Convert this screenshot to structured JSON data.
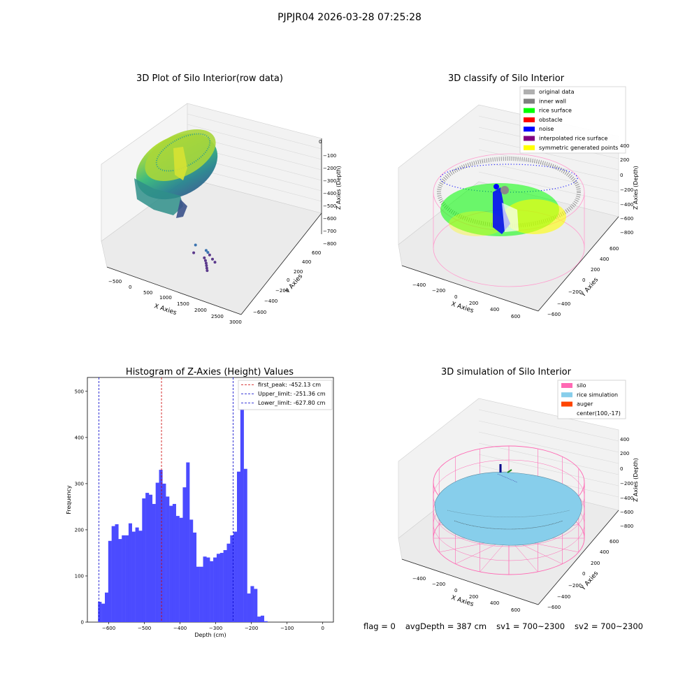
{
  "figure": {
    "suptitle": "PJPJR04 2026-03-28 07:25:28",
    "footer": {
      "flag": "flag = 0",
      "avg_depth": "avgDepth = 387 cm",
      "sv1": "sv1 = 700~2300",
      "sv2": "sv2 = 700~2300"
    }
  },
  "colors": {
    "hist_bar": "#4b4bff",
    "first_peak_line": "#cc0000",
    "limit_line": "#0000cc",
    "silo": "#ff69b4",
    "rice_simulation": "#87ceeb",
    "auger": "#ff4500",
    "original_data": "#b0b0b0",
    "inner_wall": "#808080",
    "rice_surface": "#00ff00",
    "obstacle": "#ff0000",
    "noise": "#0000ff",
    "interpolated_rice_surface": "#800080",
    "symmetric_generated_points": "#ffff00"
  },
  "chart_data": [
    {
      "type": "scatter",
      "title": "3D Plot of Silo Interior(row data)",
      "xlabel": "X Axies",
      "ylabel": "Y Axies",
      "zlabel": "Z Axies (Depth)",
      "x_ticks": [
        "−500",
        "0",
        "500",
        "1000",
        "1500",
        "2000",
        "2500",
        "3000"
      ],
      "y_ticks": [
        "−600",
        "−400",
        "−200",
        "0",
        "200",
        "400",
        "600"
      ],
      "z_ticks": [
        "0",
        "−100",
        "−200",
        "−300",
        "−400",
        "−500",
        "−600",
        "−700",
        "−800"
      ],
      "xlim": [
        -600,
        3000
      ],
      "ylim": [
        -650,
        650
      ],
      "zlim": [
        -850,
        30
      ],
      "outliers": [
        {
          "x": 2200,
          "y": 500,
          "z": -620
        },
        {
          "x": 2250,
          "y": 510,
          "z": -640
        },
        {
          "x": 2300,
          "y": 505,
          "z": -660
        },
        {
          "x": 2380,
          "y": 460,
          "z": -680
        },
        {
          "x": 2450,
          "y": 420,
          "z": -690
        },
        {
          "x": 2150,
          "y": 460,
          "z": -700
        },
        {
          "x": 2180,
          "y": 440,
          "z": -720
        },
        {
          "x": 2200,
          "y": 420,
          "z": -740
        },
        {
          "x": 2210,
          "y": 400,
          "z": -760
        },
        {
          "x": 2220,
          "y": 380,
          "z": -780
        },
        {
          "x": 2230,
          "y": 360,
          "z": -800
        },
        {
          "x": 1900,
          "y": 520,
          "z": -610
        },
        {
          "x": 1850,
          "y": 470,
          "z": -690
        }
      ]
    },
    {
      "type": "scatter",
      "title": "3D classify of Silo Interior",
      "xlabel": "X Axies",
      "ylabel": "Y Axies",
      "zlabel": "Z Axies (Depth)",
      "x_ticks": [
        "−400",
        "−200",
        "0",
        "200",
        "400",
        "600"
      ],
      "y_ticks": [
        "−600",
        "−400",
        "−200",
        "0",
        "200",
        "400",
        "600"
      ],
      "z_ticks": [
        "400",
        "200",
        "0",
        "−200",
        "−400",
        "−600",
        "−800"
      ],
      "xlim": [
        -500,
        700
      ],
      "ylim": [
        -700,
        700
      ],
      "zlim": [
        -900,
        450
      ],
      "legend": [
        {
          "label": "original data",
          "color": "#b0b0b0"
        },
        {
          "label": "inner wall",
          "color": "#808080"
        },
        {
          "label": "rice surface",
          "color": "#00ff00"
        },
        {
          "label": "obstacle",
          "color": "#ff0000"
        },
        {
          "label": "noise",
          "color": "#0000ff"
        },
        {
          "label": "interpolated rice surface",
          "color": "#800080"
        },
        {
          "label": "symmetric generated points",
          "color": "#ffff00"
        }
      ],
      "legend_position": "top-right"
    },
    {
      "type": "bar",
      "title": "Histogram of Z-Axies (Height) Values",
      "xlabel": "Depth (cm)",
      "ylabel": "Frequency",
      "xlim": [
        -660,
        30
      ],
      "ylim": [
        0,
        530
      ],
      "x_ticks": [
        -600,
        -500,
        -400,
        -300,
        -200,
        -100,
        0
      ],
      "y_ticks": [
        0,
        100,
        200,
        300,
        400,
        500
      ],
      "bin_start": -630,
      "bin_width": 9.5,
      "values": [
        44,
        40,
        64,
        176,
        208,
        212,
        180,
        188,
        188,
        214,
        196,
        205,
        198,
        268,
        280,
        276,
        256,
        302,
        330,
        300,
        272,
        252,
        256,
        230,
        226,
        292,
        346,
        222,
        194,
        120,
        120,
        142,
        140,
        132,
        140,
        148,
        150,
        156,
        170,
        188,
        196,
        326,
        510,
        332,
        62,
        78,
        72,
        12,
        14,
        2
      ],
      "vlines": [
        {
          "x": -452.13,
          "label": "first_peak: -452.13 cm",
          "color": "#cc0000"
        },
        {
          "x": -251.36,
          "label": "Upper_limit: -251.36 cm",
          "color": "#0000cc"
        },
        {
          "x": -627.8,
          "label": "Lower_limit: -627.80 cm",
          "color": "#0000cc"
        }
      ],
      "legend_position": "top-right"
    },
    {
      "type": "surface",
      "title": "3D simulation of Silo Interior",
      "xlabel": "X Axies",
      "ylabel": "Y Axies",
      "zlabel": "Z Axies (Depth)",
      "x_ticks": [
        "−400",
        "−200",
        "0",
        "200",
        "400",
        "600"
      ],
      "y_ticks": [
        "−600",
        "−400",
        "−200",
        "0",
        "200",
        "400",
        "600"
      ],
      "z_ticks": [
        "400",
        "200",
        "0",
        "−200",
        "−400",
        "−600",
        "−800"
      ],
      "xlim": [
        -500,
        700
      ],
      "ylim": [
        -700,
        700
      ],
      "zlim": [
        -900,
        450
      ],
      "legend": [
        {
          "label": "silo",
          "color": "#ff69b4"
        },
        {
          "label": "rice simulation",
          "color": "#87ceeb"
        },
        {
          "label": "auger",
          "color": "#ff4500"
        },
        {
          "label": "center(100,-17)",
          "color": ""
        }
      ],
      "legend_position": "top-right"
    }
  ]
}
